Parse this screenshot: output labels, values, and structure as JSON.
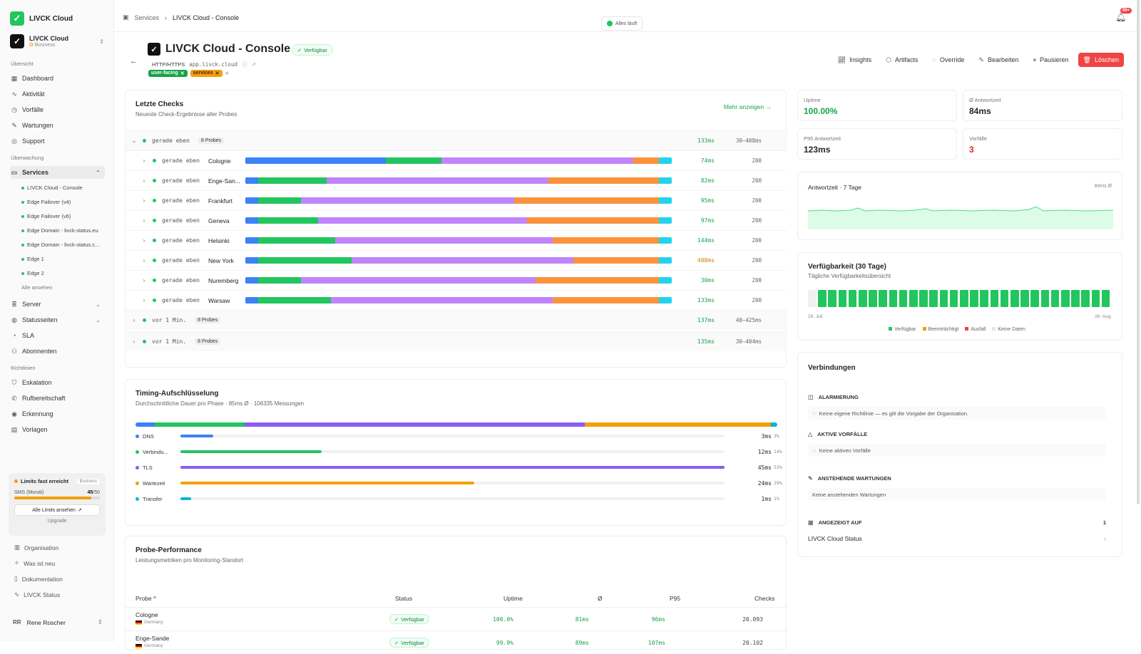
{
  "app": {
    "name": "LIVCK Cloud"
  },
  "org": {
    "name": "LIVCK Cloud",
    "plan": "Business"
  },
  "nav": {
    "section_overview": "Übersicht",
    "section_monitoring": "Überwachung",
    "section_policies": "Richtlinien",
    "overview": [
      "Dashboard",
      "Aktivität",
      "Vorfälle",
      "Wartungen",
      "Support"
    ],
    "services_label": "Services",
    "services_sub": [
      "LIVCK Cloud - Console",
      "Edge Failover (v4)",
      "Edge Failover (v6)",
      "Edge Domain - livck-status.eu",
      "Edge Domain - livck-status.c...",
      "Edge 1",
      "Edge 2"
    ],
    "view_all": "Alle ansehen",
    "monitoring": [
      "Server",
      "Statusseiten",
      "SLA",
      "Abonnenten"
    ],
    "policies": [
      "Eskalation",
      "Rufbereitschaft",
      "Erkennung",
      "Vorlagen"
    ]
  },
  "limits": {
    "title": "Limits fast erreicht",
    "badge": "Business",
    "metric": "SMS (Monat)",
    "used": "45",
    "total": "/50",
    "used_fraction": 0.9,
    "button": "Alle Limits ansehen",
    "upgrade": "Upgrade"
  },
  "footer_nav": [
    "Organisation",
    "Was ist neu",
    "Dokumentation",
    "LIVCK Status"
  ],
  "user": {
    "initials": "RR",
    "name": "Rene Roscher"
  },
  "breadcrumb": {
    "parent": "Services",
    "current": "LIVCK Cloud - Console"
  },
  "status_pill": "Alles läuft",
  "notifications": {
    "badge": "99+"
  },
  "service": {
    "title": "LIVCK Cloud - Console",
    "status": "Verfügbar",
    "protocol": "HTTP/HTTPS",
    "url": "app.livck.cloud",
    "tags": [
      "user-facing",
      "services"
    ],
    "add_tag": "+"
  },
  "actions": [
    "Insights",
    "Artifacts",
    "Override",
    "Bearbeiten",
    "Pausieren",
    "Löschen"
  ],
  "colors": {
    "dns": "#3b82f6",
    "connect": "#22c55e",
    "tls": "#c084fc",
    "wait": "#fb923c",
    "transfer": "#22d3ee",
    "accent": "#16a34a",
    "danger": "#ef4444"
  },
  "checks": {
    "title": "Letzte Checks",
    "subtitle": "Neueste Check-Ergebnisse aller Probes",
    "more": "Mehr anzeigen →",
    "group1": {
      "time": "gerade eben",
      "probes": "8 Probes",
      "ms": "133ms",
      "range": "30–408ms"
    },
    "rows": [
      {
        "time": "gerade eben",
        "loc": "Cologne",
        "ms": "74ms",
        "code": "200",
        "seg": [
          33,
          13,
          45,
          6,
          3
        ]
      },
      {
        "time": "gerade eben",
        "loc": "Enge-San...",
        "ms": "82ms",
        "code": "200",
        "seg": [
          3,
          16,
          52,
          26,
          3
        ]
      },
      {
        "time": "gerade eben",
        "loc": "Frankfurt",
        "ms": "95ms",
        "code": "200",
        "seg": [
          3,
          10,
          50,
          34,
          3
        ]
      },
      {
        "time": "gerade eben",
        "loc": "Geneva",
        "ms": "97ms",
        "code": "200",
        "seg": [
          3,
          14,
          49,
          31,
          3
        ]
      },
      {
        "time": "gerade eben",
        "loc": "Helsinki",
        "ms": "144ms",
        "code": "200",
        "seg": [
          3,
          18,
          51,
          25,
          3
        ]
      },
      {
        "time": "gerade eben",
        "loc": "New York",
        "ms": "408ms",
        "code": "200",
        "seg": [
          3,
          22,
          52,
          20,
          3
        ]
      },
      {
        "time": "gerade eben",
        "loc": "Nuremberg",
        "ms": "30ms",
        "code": "200",
        "seg": [
          3,
          10,
          55,
          29,
          3
        ]
      },
      {
        "time": "gerade eben",
        "loc": "Warsaw",
        "ms": "133ms",
        "code": "200",
        "seg": [
          3,
          17,
          52,
          25,
          3
        ]
      }
    ],
    "group2": {
      "time": "vor 1 Min.",
      "probes": "8 Probes",
      "ms": "137ms",
      "range": "40–425ms"
    },
    "group3": {
      "time": "vor 1 Min.",
      "probes": "8 Probes",
      "ms": "135ms",
      "range": "30–404ms"
    }
  },
  "timing": {
    "title": "Timing-Aufschlüsselung",
    "subtitle": "Durchschnittliche Dauer pro Phase · 85ms Ø · 106335 Messungen",
    "phases": [
      {
        "name": "DNS",
        "value": "3ms",
        "pct": "3%",
        "fraction": 0.06
      },
      {
        "name": "Verbindu...",
        "value": "12ms",
        "pct": "14%",
        "fraction": 0.26
      },
      {
        "name": "TLS",
        "value": "45ms",
        "pct": "53%",
        "fraction": 1.0
      },
      {
        "name": "Wartezeit",
        "value": "24ms",
        "pct": "29%",
        "fraction": 0.54
      },
      {
        "name": "Transfer",
        "value": "1ms",
        "pct": "1%",
        "fraction": 0.02
      }
    ]
  },
  "probe_perf": {
    "title": "Probe-Performance",
    "subtitle": "Leistungsmetriken pro Monitoring-Standort",
    "headers": [
      "Probe ^",
      "Status",
      "Uptime",
      "Ø",
      "P95",
      "Checks"
    ],
    "rows": [
      {
        "name": "Cologne",
        "country": "Germany",
        "status": "Verfügbar",
        "uptime": "100.0%",
        "avg": "81ms",
        "p95": "96ms",
        "checks": "20.093"
      },
      {
        "name": "Enge-Sande",
        "country": "Germany",
        "status": "Verfügbar",
        "uptime": "99.9%",
        "avg": "89ms",
        "p95": "107ms",
        "checks": "20.102"
      }
    ]
  },
  "stats": [
    {
      "label": "Uptime",
      "value": "100.00%"
    },
    {
      "label": "Ø Antwortzeit",
      "value": "84ms"
    },
    {
      "label": "P95 Antwortzeit",
      "value": "123ms"
    },
    {
      "label": "Vorfälle",
      "value": "3"
    }
  ],
  "response_chart": {
    "title": "Antwortzeit · 7 Tage",
    "avg": "84ms Ø"
  },
  "availability": {
    "title": "Verfügbarkeit (30 Tage)",
    "subtitle": "Tägliche Verfügbarkeitsübersicht",
    "start": "28. Juli",
    "end": "26. Aug.",
    "days": [
      "none",
      "up",
      "up",
      "up",
      "up",
      "up",
      "up",
      "up",
      "up",
      "up",
      "up",
      "up",
      "up",
      "up",
      "up",
      "up",
      "up",
      "up",
      "up",
      "up",
      "up",
      "up",
      "up",
      "up",
      "up",
      "up",
      "up",
      "up",
      "up",
      "up"
    ],
    "legend": [
      "Verfügbar",
      "Beeinträchtigt",
      "Ausfall",
      "Keine Daten"
    ]
  },
  "connections": {
    "title": "Verbindungen",
    "alarm_label": "ALARMIERUNG",
    "alarm_text": "Keine eigene Richtlinie — es gilt die Vorgabe der Organisation.",
    "incidents_label": "AKTIVE VORFÄLLE",
    "incidents_text": "Keine aktiven Vorfälle",
    "maint_label": "ANSTEHENDE WARTUNGEN",
    "maint_text": "Keine anstehenden Wartungen",
    "shown_label": "ANGEZEIGT AUF",
    "shown_count": "1",
    "shown_item": "LIVCK Cloud Status"
  }
}
